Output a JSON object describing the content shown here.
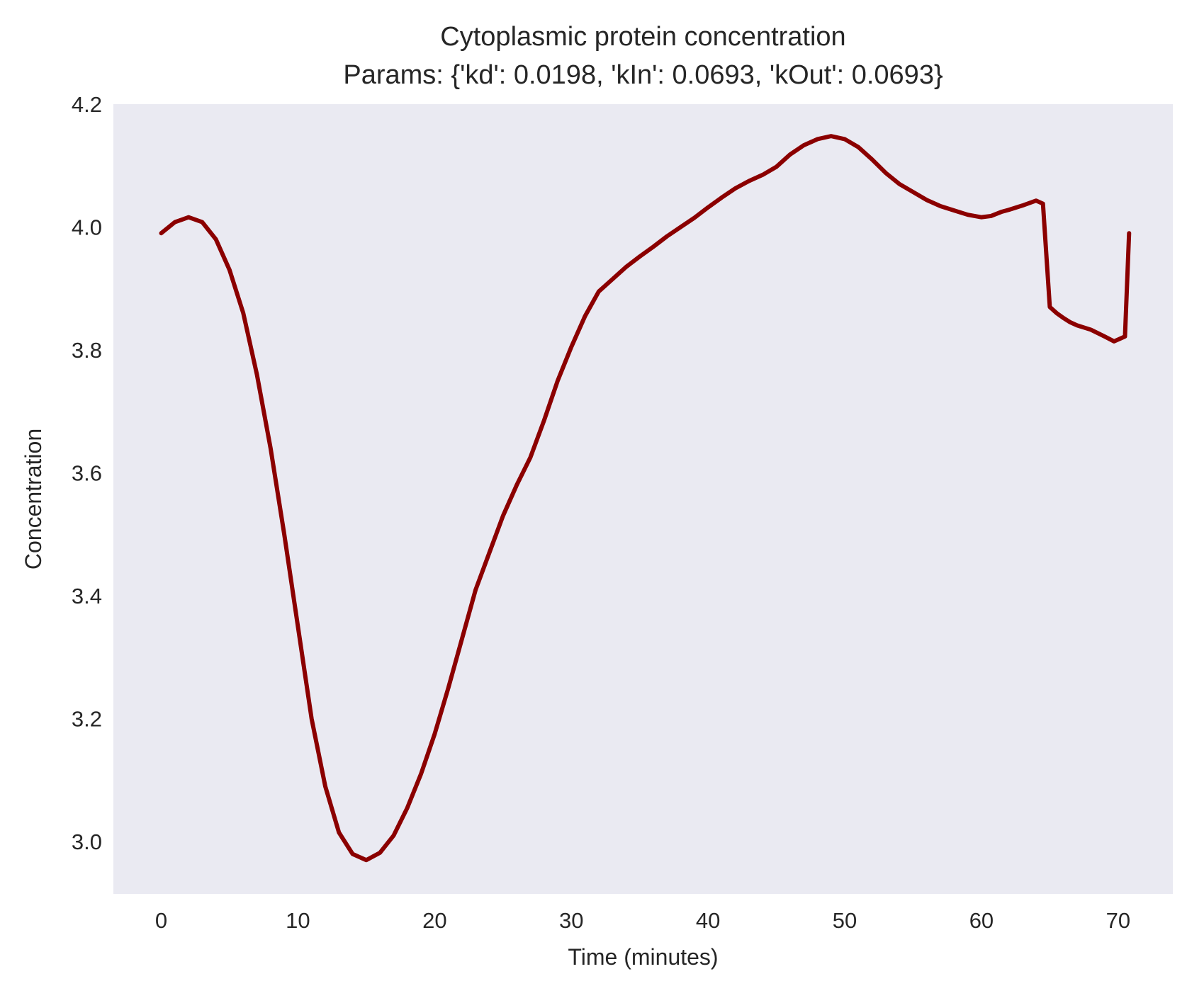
{
  "chart_data": {
    "type": "line",
    "title_line1": "Cytoplasmic protein concentration",
    "title_line2": "Params: {'kd': 0.0198, 'kIn': 0.0693, 'kOut': 0.0693}",
    "xlabel": "Time (minutes)",
    "ylabel": "Concentration",
    "xlim": [
      -3.5,
      74.0
    ],
    "ylim": [
      2.915,
      4.2
    ],
    "xticks": [
      0,
      10,
      20,
      30,
      40,
      50,
      60,
      70
    ],
    "xtick_labels": [
      "0",
      "10",
      "20",
      "30",
      "40",
      "50",
      "60",
      "70"
    ],
    "yticks": [
      3.0,
      3.2,
      3.4,
      3.6,
      3.8,
      4.0,
      4.2
    ],
    "ytick_labels": [
      "3.0",
      "3.2",
      "3.4",
      "3.6",
      "3.8",
      "4.0",
      "4.2"
    ],
    "grid": false,
    "legend": "none",
    "colors": {
      "plot_background": "#eaeaf2",
      "line": "#8b0000",
      "text": "#262626"
    },
    "series": [
      {
        "x": [
          0,
          1,
          2,
          3,
          4,
          5,
          6,
          7,
          8,
          9,
          10,
          11,
          12,
          13,
          14,
          15,
          16,
          17,
          18,
          19,
          20,
          21,
          22,
          23,
          24,
          25,
          26,
          27,
          28,
          29,
          30,
          31,
          32,
          33,
          34,
          35,
          36,
          37,
          38,
          39,
          40,
          41,
          42,
          43,
          44,
          45,
          46,
          47,
          48,
          49,
          50,
          51,
          52,
          53,
          54,
          55,
          56,
          57,
          58,
          59,
          60,
          60.7,
          61.5,
          62,
          63,
          64,
          64.5,
          65,
          65.5,
          66,
          66.5,
          67,
          68,
          69,
          69.7,
          70.1,
          70.5,
          70.8
        ],
        "values": [
          3.99,
          4.008,
          4.016,
          4.008,
          3.98,
          3.93,
          3.86,
          3.76,
          3.64,
          3.5,
          3.35,
          3.2,
          3.09,
          3.015,
          2.98,
          2.97,
          2.982,
          3.01,
          3.055,
          3.11,
          3.175,
          3.25,
          3.33,
          3.41,
          3.47,
          3.53,
          3.58,
          3.625,
          3.685,
          3.75,
          3.805,
          3.855,
          3.895,
          3.915,
          3.935,
          3.952,
          3.968,
          3.985,
          4.0,
          4.015,
          4.032,
          4.048,
          4.063,
          4.075,
          4.085,
          4.098,
          4.118,
          4.133,
          4.143,
          4.148,
          4.143,
          4.13,
          4.11,
          4.088,
          4.07,
          4.057,
          4.044,
          4.034,
          4.027,
          4.02,
          4.016,
          4.018,
          4.025,
          4.028,
          4.035,
          4.043,
          4.038,
          3.87,
          3.86,
          3.852,
          3.845,
          3.84,
          3.833,
          3.822,
          3.814,
          3.818,
          3.822,
          3.99
        ]
      }
    ]
  }
}
